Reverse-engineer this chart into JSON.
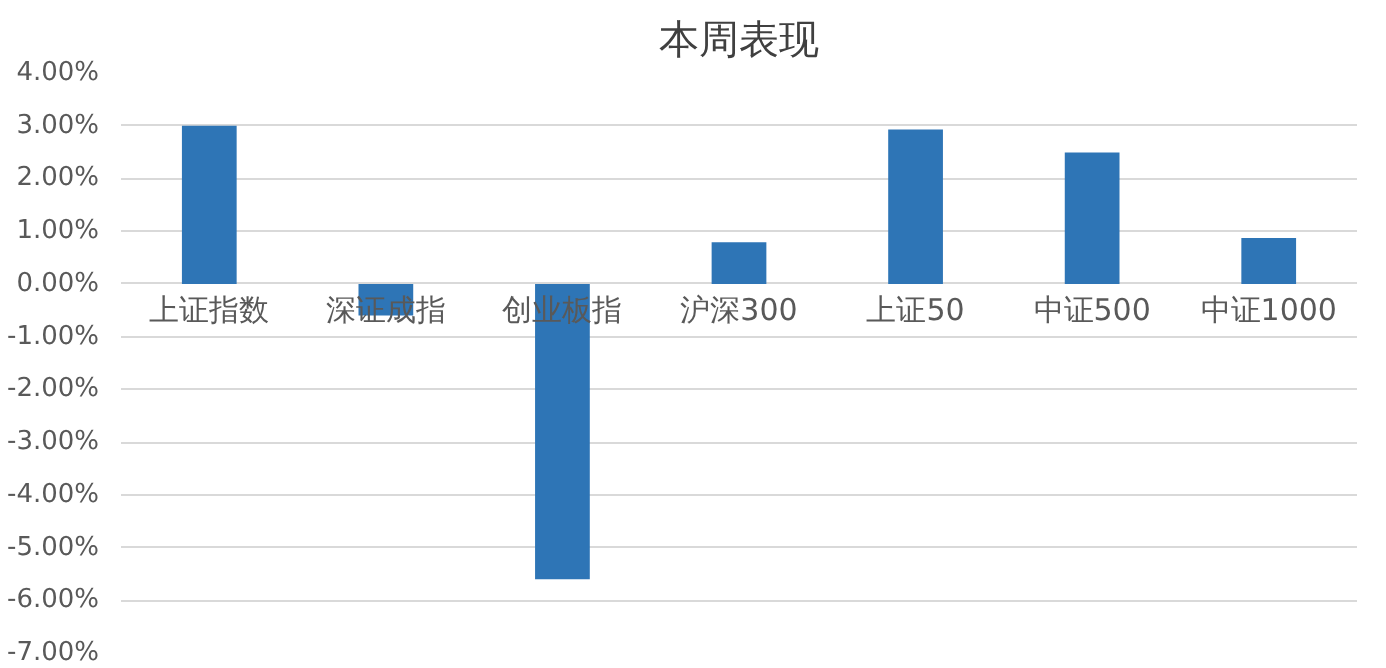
{
  "chart_data": {
    "type": "bar",
    "title": "本周表现",
    "categories": [
      "上证指数",
      "深证成指",
      "创业板指",
      "沪深300",
      "上证50",
      "中证500",
      "中证1000"
    ],
    "series": [
      {
        "color": "#2e75b6",
        "values": [
          3.0,
          -0.6,
          -5.6,
          0.79,
          2.93,
          2.49,
          0.87
        ]
      }
    ],
    "ylim": [
      -7,
      4
    ],
    "yticks": [
      {
        "value": 4,
        "label": "4.00%"
      },
      {
        "value": 3,
        "label": "3.00%"
      },
      {
        "value": 2,
        "label": "2.00%"
      },
      {
        "value": 1,
        "label": "1.00%"
      },
      {
        "value": 0,
        "label": "0.00%"
      },
      {
        "value": -1,
        "label": "-1.00%"
      },
      {
        "value": -2,
        "label": "-2.00%"
      },
      {
        "value": -3,
        "label": "-3.00%"
      },
      {
        "value": -4,
        "label": "-4.00%"
      },
      {
        "value": -5,
        "label": "-5.00%"
      },
      {
        "value": -6,
        "label": "-6.00%"
      },
      {
        "value": -7,
        "label": "-7.00%"
      }
    ],
    "grid": "y"
  }
}
